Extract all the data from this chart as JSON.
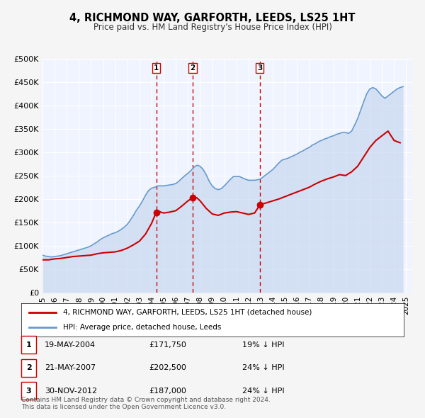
{
  "title": "4, RICHMOND WAY, GARFORTH, LEEDS, LS25 1HT",
  "subtitle": "Price paid vs. HM Land Registry's House Price Index (HPI)",
  "xlabel": "",
  "ylabel": "",
  "ylim": [
    0,
    500000
  ],
  "yticks": [
    0,
    50000,
    100000,
    150000,
    200000,
    250000,
    300000,
    350000,
    400000,
    450000,
    500000
  ],
  "ytick_labels": [
    "£0",
    "£50K",
    "£100K",
    "£150K",
    "£200K",
    "£250K",
    "£300K",
    "£350K",
    "£400K",
    "£450K",
    "£500K"
  ],
  "xlim_start": 1995.0,
  "xlim_end": 2025.5,
  "xticks": [
    1995,
    1996,
    1997,
    1998,
    1999,
    2000,
    2001,
    2002,
    2003,
    2004,
    2005,
    2006,
    2007,
    2008,
    2009,
    2010,
    2011,
    2012,
    2013,
    2014,
    2015,
    2016,
    2017,
    2018,
    2019,
    2020,
    2021,
    2022,
    2023,
    2024,
    2025
  ],
  "background_color": "#f0f4ff",
  "plot_bg_color": "#f0f4ff",
  "grid_color": "#ffffff",
  "sale_color": "#cc0000",
  "hpi_color": "#6699cc",
  "hpi_fill_color": "#c8d8f0",
  "sale_marker_color": "#cc0000",
  "legend_box_color": "#ffffff",
  "annotation_line_color": "#cc0000",
  "sales": [
    {
      "date_num": 2004.38,
      "price": 171750,
      "label": "1"
    },
    {
      "date_num": 2007.38,
      "price": 202500,
      "label": "2"
    },
    {
      "date_num": 2012.92,
      "price": 187000,
      "label": "3"
    }
  ],
  "table_rows": [
    {
      "num": "1",
      "date": "19-MAY-2004",
      "price": "£171,750",
      "hpi": "19% ↓ HPI"
    },
    {
      "num": "2",
      "date": "21-MAY-2007",
      "price": "£202,500",
      "hpi": "24% ↓ HPI"
    },
    {
      "num": "3",
      "date": "30-NOV-2012",
      "price": "£187,000",
      "hpi": "24% ↓ HPI"
    }
  ],
  "legend_line1": "4, RICHMOND WAY, GARFORTH, LEEDS, LS25 1HT (detached house)",
  "legend_line2": "HPI: Average price, detached house, Leeds",
  "footer_line1": "Contains HM Land Registry data © Crown copyright and database right 2024.",
  "footer_line2": "This data is licensed under the Open Government Licence v3.0.",
  "hpi_data": {
    "years": [
      1995.0,
      1995.25,
      1995.5,
      1995.75,
      1996.0,
      1996.25,
      1996.5,
      1996.75,
      1997.0,
      1997.25,
      1997.5,
      1997.75,
      1998.0,
      1998.25,
      1998.5,
      1998.75,
      1999.0,
      1999.25,
      1999.5,
      1999.75,
      2000.0,
      2000.25,
      2000.5,
      2000.75,
      2001.0,
      2001.25,
      2001.5,
      2001.75,
      2002.0,
      2002.25,
      2002.5,
      2002.75,
      2003.0,
      2003.25,
      2003.5,
      2003.75,
      2004.0,
      2004.25,
      2004.5,
      2004.75,
      2005.0,
      2005.25,
      2005.5,
      2005.75,
      2006.0,
      2006.25,
      2006.5,
      2006.75,
      2007.0,
      2007.25,
      2007.5,
      2007.75,
      2008.0,
      2008.25,
      2008.5,
      2008.75,
      2009.0,
      2009.25,
      2009.5,
      2009.75,
      2010.0,
      2010.25,
      2010.5,
      2010.75,
      2011.0,
      2011.25,
      2011.5,
      2011.75,
      2012.0,
      2012.25,
      2012.5,
      2012.75,
      2013.0,
      2013.25,
      2013.5,
      2013.75,
      2014.0,
      2014.25,
      2014.5,
      2014.75,
      2015.0,
      2015.25,
      2015.5,
      2015.75,
      2016.0,
      2016.25,
      2016.5,
      2016.75,
      2017.0,
      2017.25,
      2017.5,
      2017.75,
      2018.0,
      2018.25,
      2018.5,
      2018.75,
      2019.0,
      2019.25,
      2019.5,
      2019.75,
      2020.0,
      2020.25,
      2020.5,
      2020.75,
      2021.0,
      2021.25,
      2021.5,
      2021.75,
      2022.0,
      2022.25,
      2022.5,
      2022.75,
      2023.0,
      2023.25,
      2023.5,
      2023.75,
      2024.0,
      2024.25,
      2024.5,
      2024.75
    ],
    "values": [
      80000,
      78000,
      77000,
      76000,
      77000,
      78000,
      79000,
      81000,
      83000,
      85000,
      87000,
      89000,
      91000,
      93000,
      95000,
      97000,
      100000,
      104000,
      108000,
      113000,
      117000,
      120000,
      123000,
      126000,
      128000,
      131000,
      135000,
      140000,
      146000,
      155000,
      165000,
      176000,
      185000,
      196000,
      208000,
      218000,
      223000,
      225000,
      228000,
      228000,
      228000,
      229000,
      230000,
      231000,
      233000,
      238000,
      244000,
      250000,
      255000,
      261000,
      268000,
      272000,
      270000,
      263000,
      252000,
      238000,
      228000,
      222000,
      220000,
      222000,
      228000,
      235000,
      242000,
      248000,
      248000,
      248000,
      245000,
      242000,
      240000,
      240000,
      240000,
      241000,
      243000,
      248000,
      253000,
      258000,
      263000,
      270000,
      277000,
      283000,
      285000,
      287000,
      290000,
      293000,
      296000,
      300000,
      303000,
      307000,
      310000,
      315000,
      318000,
      322000,
      325000,
      328000,
      330000,
      333000,
      335000,
      338000,
      340000,
      342000,
      342000,
      340000,
      345000,
      358000,
      372000,
      390000,
      408000,
      425000,
      435000,
      438000,
      435000,
      428000,
      420000,
      415000,
      420000,
      425000,
      430000,
      435000,
      438000,
      440000
    ]
  },
  "sale_data": {
    "years": [
      1995.0,
      1995.5,
      1996.0,
      1996.5,
      1997.0,
      1997.5,
      1998.0,
      1998.5,
      1999.0,
      1999.5,
      2000.0,
      2000.5,
      2001.0,
      2001.5,
      2002.0,
      2002.5,
      2003.0,
      2003.5,
      2004.0,
      2004.38,
      2004.5,
      2004.75,
      2005.0,
      2005.5,
      2006.0,
      2006.5,
      2007.0,
      2007.38,
      2007.5,
      2007.75,
      2008.0,
      2008.5,
      2009.0,
      2009.5,
      2010.0,
      2010.5,
      2011.0,
      2011.5,
      2012.0,
      2012.5,
      2012.92,
      2013.0,
      2013.5,
      2014.0,
      2014.5,
      2015.0,
      2015.5,
      2016.0,
      2016.5,
      2017.0,
      2017.5,
      2018.0,
      2018.5,
      2019.0,
      2019.5,
      2020.0,
      2020.5,
      2021.0,
      2021.5,
      2022.0,
      2022.5,
      2023.0,
      2023.5,
      2024.0,
      2024.5
    ],
    "values": [
      70000,
      70000,
      72000,
      73000,
      75000,
      77000,
      78000,
      79000,
      80000,
      83000,
      85000,
      86000,
      87000,
      90000,
      95000,
      102000,
      110000,
      125000,
      148000,
      171750,
      175000,
      172000,
      170000,
      172000,
      175000,
      185000,
      196000,
      202500,
      205000,
      202000,
      196000,
      180000,
      168000,
      165000,
      170000,
      172000,
      173000,
      170000,
      167000,
      170000,
      187000,
      188000,
      192000,
      196000,
      200000,
      205000,
      210000,
      215000,
      220000,
      225000,
      232000,
      238000,
      243000,
      247000,
      252000,
      250000,
      258000,
      270000,
      290000,
      310000,
      325000,
      335000,
      345000,
      325000,
      320000
    ]
  }
}
